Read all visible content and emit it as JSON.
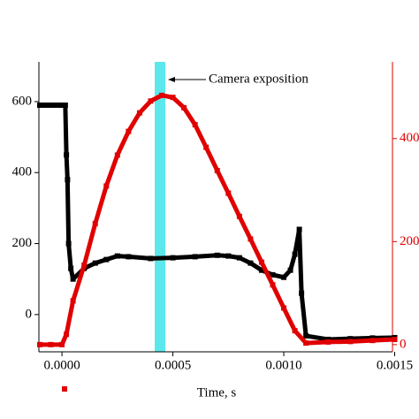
{
  "chart_data": {
    "type": "line",
    "xlabel": "Time, s",
    "annotation": "Camera exposition",
    "highlight_x": [
      0.000418,
      0.000466
    ],
    "highlight_color": "#5ce8ea",
    "xlim": [
      -0.000104,
      0.00149
    ],
    "xticks": [
      {
        "value": 0,
        "label": "0.0000"
      },
      {
        "value": 0.0005,
        "label": "0.0005"
      },
      {
        "value": 0.001,
        "label": "0.0010"
      },
      {
        "value": 0.0015,
        "label": "0.0015"
      }
    ],
    "ylim": [
      -105,
      712
    ],
    "yticks": [
      0,
      200,
      400,
      600
    ],
    "y2lim": [
      -14,
      549
    ],
    "y2ticks": [
      0,
      200,
      400
    ],
    "y2color": "#e00000",
    "series": [
      {
        "color": "#000000",
        "x": [
          -0.0001,
          -8e-05,
          -6e-05,
          -4e-05,
          -2e-05,
          0,
          1.5e-05,
          2e-05,
          2.5e-05,
          3e-05,
          4e-05,
          5e-05,
          0.0001,
          0.00015,
          0.0002,
          0.00025,
          0.0003,
          0.0004,
          0.0005,
          0.0006,
          0.0007,
          0.00075,
          0.0008,
          0.00085,
          0.0009,
          0.00095,
          0.001,
          0.00103,
          0.00105,
          0.00107,
          0.00108,
          0.0011,
          0.0012,
          0.0013,
          0.0014,
          0.0015
        ],
        "values": [
          590,
          590,
          590,
          590,
          590,
          590,
          590,
          450,
          380,
          200,
          130,
          100,
          130,
          145,
          155,
          165,
          163,
          158,
          160,
          163,
          167,
          165,
          160,
          145,
          125,
          112,
          105,
          125,
          170,
          240,
          60,
          -60,
          -70,
          -68,
          -66,
          -65
        ]
      },
      {
        "color": "#e00000",
        "axis": "y2",
        "x": [
          -0.0001,
          -5e-05,
          0,
          2e-05,
          5e-05,
          0.0001,
          0.00015,
          0.0002,
          0.00025,
          0.0003,
          0.00035,
          0.0004,
          0.00045,
          0.0005,
          0.00055,
          0.0006,
          0.00065,
          0.0007,
          0.00075,
          0.0008,
          0.00085,
          0.0009,
          0.00095,
          0.001,
          0.00105,
          0.0011,
          0.0012,
          0.0013,
          0.0014,
          0.0015
        ],
        "values": [
          0,
          0,
          0,
          20,
          85,
          154,
          235,
          308,
          368,
          414,
          450,
          473,
          484,
          480,
          460,
          427,
          383,
          338,
          294,
          249,
          205,
          160,
          116,
          71,
          27,
          3,
          5,
          6,
          8,
          10
        ]
      }
    ]
  }
}
